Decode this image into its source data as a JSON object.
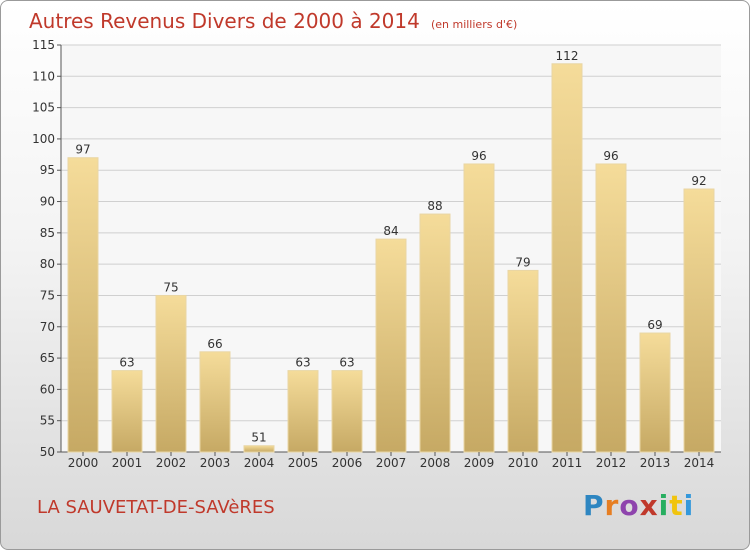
{
  "title": "Autres Revenus Divers de 2000 à 2014",
  "subtitle": "(en milliers d'€)",
  "commune": "LA SAUVETAT-DE-SAVèRES",
  "logo": {
    "text": "Proxiti",
    "letter_colors": [
      "#2e86c1",
      "#e67e22",
      "#8e44ad",
      "#c0392b",
      "#27ae60",
      "#f1c40f",
      "#3498db"
    ]
  },
  "colors": {
    "text_red": "#c0392b",
    "bar_top": "#f5dc9a",
    "bar_bottom": "#c6a964",
    "grid": "#d0d0d0",
    "plot_bg": "#f7f7f7"
  },
  "chart_data": {
    "type": "bar",
    "categories": [
      "2000",
      "2001",
      "2002",
      "2003",
      "2004",
      "2005",
      "2006",
      "2007",
      "2008",
      "2009",
      "2010",
      "2011",
      "2012",
      "2013",
      "2014"
    ],
    "values": [
      97,
      63,
      75,
      66,
      51,
      63,
      63,
      84,
      88,
      96,
      79,
      112,
      96,
      69,
      92
    ],
    "ylim": [
      50,
      115
    ],
    "yticks": [
      50,
      55,
      60,
      65,
      70,
      75,
      80,
      85,
      90,
      95,
      100,
      105,
      110,
      115
    ],
    "grid": true,
    "xlabel": "",
    "ylabel": ""
  }
}
